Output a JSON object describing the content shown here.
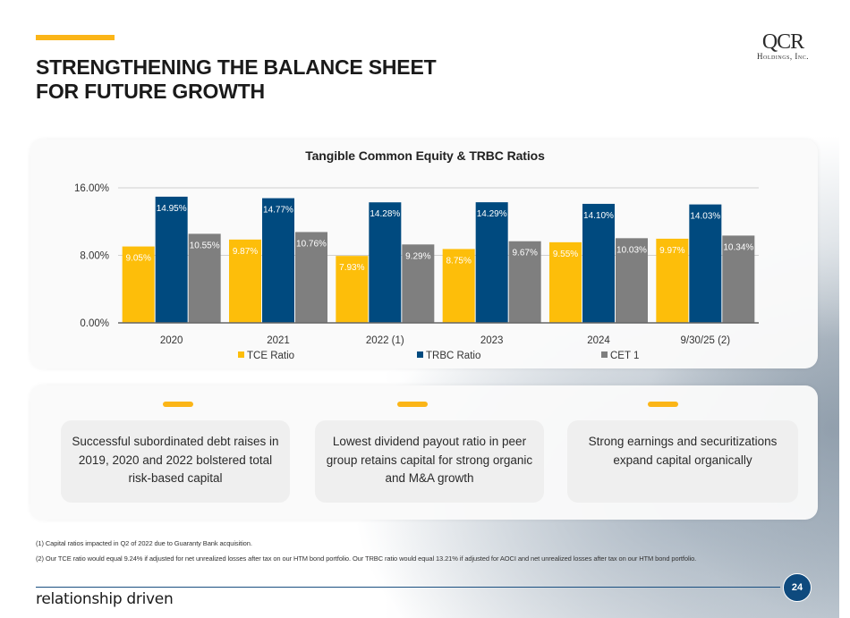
{
  "header": {
    "title_line1": "STRENGTHENING THE BALANCE SHEET",
    "title_line2": "FOR FUTURE GROWTH",
    "accent_color": "#fbb517"
  },
  "logo": {
    "name": "QCR",
    "subtitle": "Holdings, Inc."
  },
  "chart_data": {
    "type": "bar",
    "title": "Tangible Common Equity & TRBC Ratios",
    "categories": [
      "2020",
      "2021",
      "2022 (1)",
      "2023",
      "2024",
      "9/30/25  (2)"
    ],
    "series": [
      {
        "name": "TCE Ratio",
        "color": "#fdbe0a",
        "values": [
          9.05,
          9.87,
          7.93,
          8.75,
          9.55,
          9.97
        ],
        "labels": [
          "9.05%",
          "9.87%",
          "7.93%",
          "8.75%",
          "9.55%",
          "9.97%"
        ]
      },
      {
        "name": "TRBC Ratio",
        "color": "#004a7f",
        "values": [
          14.95,
          14.77,
          14.28,
          14.29,
          14.1,
          14.03
        ],
        "labels": [
          "14.95%",
          "14.77%",
          "14.28%",
          "14.29%",
          "14.10%",
          "14.03%"
        ]
      },
      {
        "name": "CET 1",
        "color": "#7f7f7f",
        "values": [
          10.55,
          10.76,
          9.29,
          9.67,
          10.03,
          10.34
        ],
        "labels": [
          "10.55%",
          "10.76%",
          "9.29%",
          "9.67%",
          "10.03%",
          "10.34%"
        ]
      }
    ],
    "xlabel": "",
    "ylabel": "",
    "ylim": [
      0,
      16
    ],
    "yticks": [
      "0.00%",
      "8.00%",
      "16.00%"
    ],
    "ytick_values": [
      0,
      8,
      16
    ],
    "grid": true,
    "legend": "bottom"
  },
  "highlights": [
    {
      "text": "Successful subordinated debt raises in 2019, 2020 and 2022 bolstered total risk-based capital"
    },
    {
      "text": "Lowest dividend payout ratio in peer group retains capital for strong organic and M&A growth"
    },
    {
      "text": "Strong earnings and securitizations expand capital organically"
    }
  ],
  "footnotes": [
    "(1) Capital ratios impacted in Q2 of 2022 due to Guaranty Bank acquisition.",
    "(2) Our TCE ratio would equal 9.24% if adjusted for net unrealized losses after tax on our HTM bond portfolio. Our TRBC ratio would equal 13.21% if adjusted for AOCI and net unrealized losses after tax on our HTM bond portfolio."
  ],
  "footer": {
    "tagline": "relationship driven",
    "page_number": "24"
  }
}
